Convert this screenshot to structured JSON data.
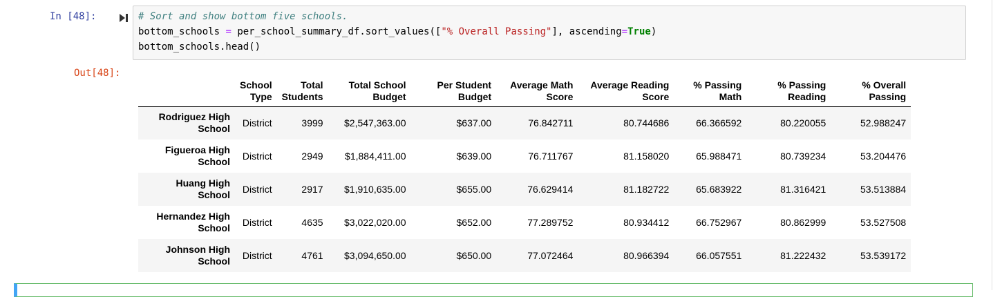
{
  "cell": {
    "input_prompt": "In [48]:",
    "output_prompt": "Out[48]:",
    "code": {
      "comment": "# Sort and show bottom five schools.",
      "line2_var": "bottom_schools",
      "line2_op": "=",
      "line2_call": "per_school_summary_df.sort_values([",
      "line2_str": "\"% Overall Passing\"",
      "line2_mid": "], ascending",
      "line2_op2": "=",
      "line2_kw": "True",
      "line2_end": ")",
      "line3": "bottom_schools.head()"
    }
  },
  "table": {
    "headers": [
      [
        "School",
        "Type"
      ],
      [
        "Total",
        "Students"
      ],
      [
        "Total School",
        "Budget"
      ],
      [
        "Per Student",
        "Budget"
      ],
      [
        "Average Math",
        "Score"
      ],
      [
        "Average Reading",
        "Score"
      ],
      [
        "% Passing",
        "Math"
      ],
      [
        "% Passing",
        "Reading"
      ],
      [
        "% Overall",
        "Passing"
      ]
    ],
    "rows": [
      {
        "name": [
          "Rodriguez High",
          "School"
        ],
        "cells": [
          "District",
          "3999",
          "$2,547,363.00",
          "$637.00",
          "76.842711",
          "80.744686",
          "66.366592",
          "80.220055",
          "52.988247"
        ]
      },
      {
        "name": [
          "Figueroa High",
          "School"
        ],
        "cells": [
          "District",
          "2949",
          "$1,884,411.00",
          "$639.00",
          "76.711767",
          "81.158020",
          "65.988471",
          "80.739234",
          "53.204476"
        ]
      },
      {
        "name": [
          "Huang High",
          "School"
        ],
        "cells": [
          "District",
          "2917",
          "$1,910,635.00",
          "$655.00",
          "76.629414",
          "81.182722",
          "65.683922",
          "81.316421",
          "53.513884"
        ]
      },
      {
        "name": [
          "Hernandez High",
          "School"
        ],
        "cells": [
          "District",
          "4635",
          "$3,022,020.00",
          "$652.00",
          "77.289752",
          "80.934412",
          "66.752967",
          "80.862999",
          "53.527508"
        ]
      },
      {
        "name": [
          "Johnson High",
          "School"
        ],
        "cells": [
          "District",
          "4761",
          "$3,094,650.00",
          "$650.00",
          "77.072464",
          "80.966394",
          "66.057551",
          "81.222432",
          "53.539172"
        ]
      }
    ]
  },
  "icons": {
    "run": "step-forward-icon"
  },
  "colors": {
    "input_prompt": "#303f9f",
    "output_prompt": "#d84315",
    "selected_cell_border": "#66bb6a"
  }
}
